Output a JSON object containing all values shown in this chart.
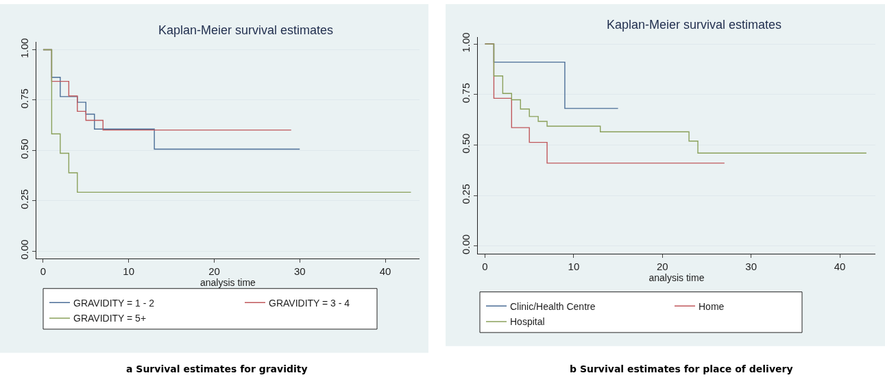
{
  "chart_data": [
    {
      "type": "step",
      "title": "Kaplan-Meier survival estimates",
      "xlabel": "analysis time",
      "xlim": [
        -0.8,
        44
      ],
      "ylim": [
        -0.037,
        1.038
      ],
      "xticks": [
        0,
        10,
        20,
        30,
        40
      ],
      "yticks": [
        {
          "value": 0,
          "label": "0.00"
        },
        {
          "value": 0.25,
          "label": "0.25"
        },
        {
          "value": 0.5,
          "label": "0.50"
        },
        {
          "value": 0.75,
          "label": "0.75"
        },
        {
          "value": 1,
          "label": "1.00"
        }
      ],
      "grid": "y",
      "legend": "bottom",
      "annotations": [
        "a Survival estimates for gravidity"
      ],
      "series": [
        {
          "name": "GRAVIDITY = 1 - 2",
          "color": "#4a6d96",
          "x": [
            0,
            1,
            2,
            4,
            5,
            6,
            13,
            30
          ],
          "values": [
            1,
            0.863,
            0.767,
            0.739,
            0.68,
            0.606,
            0.506,
            0.506
          ]
        },
        {
          "name": "GRAVIDITY = 3 - 4",
          "color": "#c0575b",
          "x": [
            0,
            1,
            3,
            4,
            5,
            7,
            29
          ],
          "values": [
            1,
            0.843,
            0.77,
            0.694,
            0.649,
            0.601,
            0.601
          ]
        },
        {
          "name": "GRAVIDITY = 5+",
          "color": "#8aa05a",
          "x": [
            0,
            1,
            2,
            3,
            4,
            43
          ],
          "values": [
            1,
            0.582,
            0.486,
            0.389,
            0.292,
            0.292
          ]
        }
      ]
    },
    {
      "type": "step",
      "title": "Kaplan-Meier survival estimates",
      "xlabel": "analysis time",
      "xlim": [
        -0.8,
        44
      ],
      "ylim": [
        -0.04,
        1.036
      ],
      "xticks": [
        0,
        10,
        20,
        30,
        40
      ],
      "yticks": [
        {
          "value": 0,
          "label": "0.00"
        },
        {
          "value": 0.25,
          "label": "0.25"
        },
        {
          "value": 0.5,
          "label": "0.50"
        },
        {
          "value": 0.75,
          "label": "0.75"
        },
        {
          "value": 1,
          "label": "1.00"
        }
      ],
      "grid": "y",
      "legend": "bottom",
      "annotations": [
        "b Survival estimates for place of delivery"
      ],
      "series": [
        {
          "name": "Clinic/Health Centre",
          "color": "#4a6d96",
          "x": [
            0,
            1,
            9,
            15
          ],
          "values": [
            1,
            0.91,
            0.681,
            0.681
          ]
        },
        {
          "name": "Home",
          "color": "#c0575b",
          "x": [
            0,
            1,
            3,
            5,
            7,
            27
          ],
          "values": [
            1,
            0.731,
            0.586,
            0.513,
            0.41,
            0.41
          ]
        },
        {
          "name": "Hospital",
          "color": "#8aa05a",
          "x": [
            0,
            1,
            2,
            3,
            4,
            5,
            6,
            7,
            13,
            23,
            24,
            43
          ],
          "values": [
            1,
            0.842,
            0.755,
            0.724,
            0.678,
            0.641,
            0.617,
            0.593,
            0.565,
            0.519,
            0.46,
            0.46
          ]
        }
      ]
    }
  ]
}
